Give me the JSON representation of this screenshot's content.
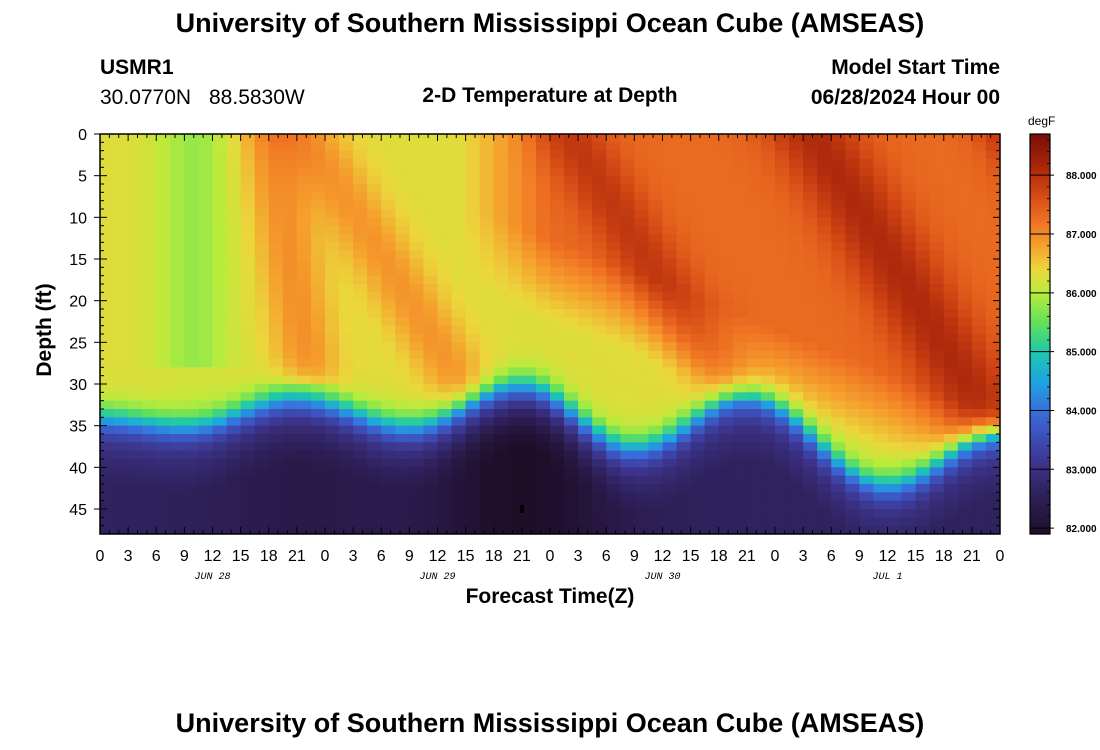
{
  "page": {
    "title_top": "University of Southern Mississippi Ocean Cube (AMSEAS)",
    "title_bottom": "University of Southern Mississippi Ocean Cube (AMSEAS)"
  },
  "station": {
    "id": "USMR1",
    "lat": "30.0770N",
    "lon": "88.5830W"
  },
  "model": {
    "label": "Model Start Time",
    "start": "06/28/2024 Hour 00"
  },
  "chart_data": {
    "type": "heatmap",
    "title": "2-D Temperature at Depth",
    "xlabel": "Forecast Time(Z)",
    "ylabel": "Depth (ft)",
    "x_range_hours": [
      0,
      96
    ],
    "y_range_ft": [
      0,
      48
    ],
    "x_tick_labels": [
      "0",
      "3",
      "6",
      "9",
      "12",
      "15",
      "18",
      "21",
      "0",
      "3",
      "6",
      "9",
      "12",
      "15",
      "18",
      "21",
      "0",
      "3",
      "6",
      "9",
      "12",
      "15",
      "18",
      "21",
      "0",
      "3",
      "6",
      "9",
      "12",
      "15",
      "18",
      "21",
      "0"
    ],
    "date_labels": [
      {
        "label": "JUN 28",
        "hour": 12
      },
      {
        "label": "JUN 29",
        "hour": 36
      },
      {
        "label": "JUN 30",
        "hour": 60
      },
      {
        "label": "JUL 1",
        "hour": 84
      }
    ],
    "y_ticks": [
      0,
      5,
      10,
      15,
      20,
      25,
      30,
      35,
      40,
      45
    ],
    "colorbar": {
      "unit": "degF",
      "min": 81.9,
      "max": 88.7,
      "tick_labels": [
        "88.000",
        "87.000",
        "86.000",
        "85.000",
        "84.000",
        "83.000",
        "82.000"
      ],
      "tick_values": [
        88,
        87,
        86,
        85,
        84,
        83,
        82
      ]
    },
    "thermocline_depth_ft": [
      {
        "hour": 0,
        "depth": 34
      },
      {
        "hour": 9,
        "depth": 35
      },
      {
        "hour": 21,
        "depth": 31.5
      },
      {
        "hour": 33,
        "depth": 35
      },
      {
        "hour": 45,
        "depth": 30
      },
      {
        "hour": 57,
        "depth": 37.5
      },
      {
        "hour": 69,
        "depth": 31.5
      },
      {
        "hour": 84,
        "depth": 42
      },
      {
        "hour": 96,
        "depth": 36
      }
    ],
    "surface_warm_maxima": [
      {
        "hour": 21,
        "depth": 5,
        "value": 88.3
      },
      {
        "hour": 45,
        "depth": 5,
        "value": 88.3
      },
      {
        "hour": 69,
        "depth": 5,
        "value": 88.4
      },
      {
        "hour": 94,
        "depth": 5,
        "value": 88.6
      }
    ],
    "deep_cold_minimum": {
      "hour": 45,
      "depth": 45,
      "value": 82.0
    }
  }
}
